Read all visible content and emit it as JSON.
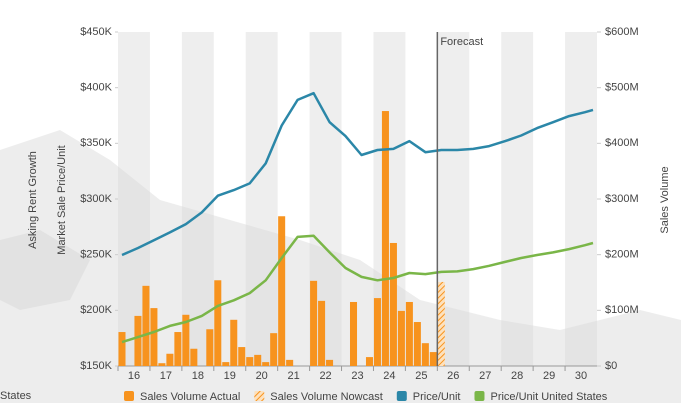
{
  "chart_data": {
    "type": "combo",
    "background_texts": [
      "Asking Rent Growth",
      "States"
    ],
    "ylabel": "Market Sale Price/Unit",
    "y2label": "Sales Volume",
    "xlim": [
      2016,
      2031
    ],
    "xticks": [
      {
        "value": 2016.5,
        "label": "16"
      },
      {
        "value": 2017.5,
        "label": "17"
      },
      {
        "value": 2018.5,
        "label": "18"
      },
      {
        "value": 2019.5,
        "label": "19"
      },
      {
        "value": 2020.5,
        "label": "20"
      },
      {
        "value": 2021.5,
        "label": "21"
      },
      {
        "value": 2022.5,
        "label": "22"
      },
      {
        "value": 2023.5,
        "label": "23"
      },
      {
        "value": 2024.5,
        "label": "24"
      },
      {
        "value": 2025.5,
        "label": "25"
      },
      {
        "value": 2026.5,
        "label": "26"
      },
      {
        "value": 2027.5,
        "label": "27"
      },
      {
        "value": 2028.5,
        "label": "28"
      },
      {
        "value": 2029.5,
        "label": "29"
      },
      {
        "value": 2030.5,
        "label": "30"
      }
    ],
    "ylim": [
      150,
      450
    ],
    "yticks": [
      {
        "value": 150,
        "label": "$150K"
      },
      {
        "value": 200,
        "label": "$200K"
      },
      {
        "value": 250,
        "label": "$250K"
      },
      {
        "value": 300,
        "label": "$300K"
      },
      {
        "value": 350,
        "label": "$350K"
      },
      {
        "value": 400,
        "label": "$400K"
      },
      {
        "value": 450,
        "label": "$450K"
      }
    ],
    "y2lim": [
      0,
      600
    ],
    "y2ticks": [
      {
        "value": 0,
        "label": "$0"
      },
      {
        "value": 100,
        "label": "$100M"
      },
      {
        "value": 200,
        "label": "$200M"
      },
      {
        "value": 300,
        "label": "$300M"
      },
      {
        "value": 400,
        "label": "$400M"
      },
      {
        "value": 500,
        "label": "$500M"
      },
      {
        "value": 600,
        "label": "$600M"
      }
    ],
    "forecast": {
      "x": 2026,
      "label": "Forecast"
    },
    "series": [
      {
        "name": "Sales Volume Actual",
        "type": "bar",
        "axis": "y2",
        "color": "#f7931e",
        "x": [
          2016.125,
          2016.375,
          2016.625,
          2016.875,
          2017.125,
          2017.375,
          2017.625,
          2017.875,
          2018.125,
          2018.375,
          2018.625,
          2018.875,
          2019.125,
          2019.375,
          2019.625,
          2019.875,
          2020.125,
          2020.375,
          2020.625,
          2020.875,
          2021.125,
          2021.375,
          2021.625,
          2021.875,
          2022.125,
          2022.375,
          2022.625,
          2022.875,
          2023.125,
          2023.375,
          2023.625,
          2023.875,
          2024.125,
          2024.375,
          2024.625,
          2024.875,
          2025.125,
          2025.375,
          2025.625,
          2025.875
        ],
        "values": [
          61,
          0,
          90,
          144,
          104,
          5,
          22,
          61,
          92,
          31,
          0,
          66,
          154,
          7,
          83,
          34,
          16,
          20,
          7,
          59,
          269,
          11,
          0,
          0,
          153,
          117,
          11,
          0,
          0,
          115,
          0,
          16,
          122,
          458,
          221,
          99,
          115,
          79,
          41,
          25
        ]
      },
      {
        "name": "Sales Volume Nowcast",
        "type": "bar",
        "axis": "y2",
        "color": "#f7931e",
        "hatch": true,
        "x": [
          2026.125
        ],
        "values": [
          151
        ]
      },
      {
        "name": "Price/Unit",
        "type": "line",
        "color": "#2b87a8",
        "x": [
          2016.125,
          2016.625,
          2017.125,
          2017.625,
          2018.125,
          2018.625,
          2019.125,
          2019.625,
          2020.125,
          2020.625,
          2021.125,
          2021.625,
          2022.125,
          2022.625,
          2023.125,
          2023.625,
          2024.125,
          2024.625,
          2025.125,
          2025.625,
          2026.125,
          2026.625,
          2027.125,
          2027.625,
          2028.125,
          2028.625,
          2029.125,
          2029.625,
          2030.125,
          2030.625,
          2030.875
        ],
        "values": [
          249.7,
          256,
          263,
          270,
          277.5,
          288,
          303,
          308,
          314,
          332,
          366,
          389,
          395,
          369,
          356.5,
          339.5,
          344,
          345,
          352,
          342,
          344,
          344,
          345,
          347.5,
          352,
          357,
          363.7,
          369,
          374.5,
          378,
          380
        ]
      },
      {
        "name": "Price/Unit United States",
        "type": "line",
        "color": "#7ab648",
        "x": [
          2016.125,
          2016.625,
          2017.125,
          2017.625,
          2018.125,
          2018.625,
          2019.125,
          2019.625,
          2020.125,
          2020.625,
          2021.125,
          2021.625,
          2022.125,
          2022.625,
          2023.125,
          2023.625,
          2024.125,
          2024.625,
          2025.125,
          2025.625,
          2026.125,
          2026.625,
          2027.125,
          2027.625,
          2028.125,
          2028.625,
          2029.125,
          2029.625,
          2030.125,
          2030.625,
          2030.875
        ],
        "values": [
          171.5,
          176,
          180.5,
          186,
          189.5,
          195,
          204,
          209,
          215.5,
          227,
          247,
          266,
          267,
          252,
          238,
          230,
          227,
          229,
          233.5,
          232.5,
          234.5,
          235,
          237,
          240,
          243.5,
          247,
          249.7,
          252,
          255,
          258.5,
          260.5
        ]
      }
    ]
  }
}
